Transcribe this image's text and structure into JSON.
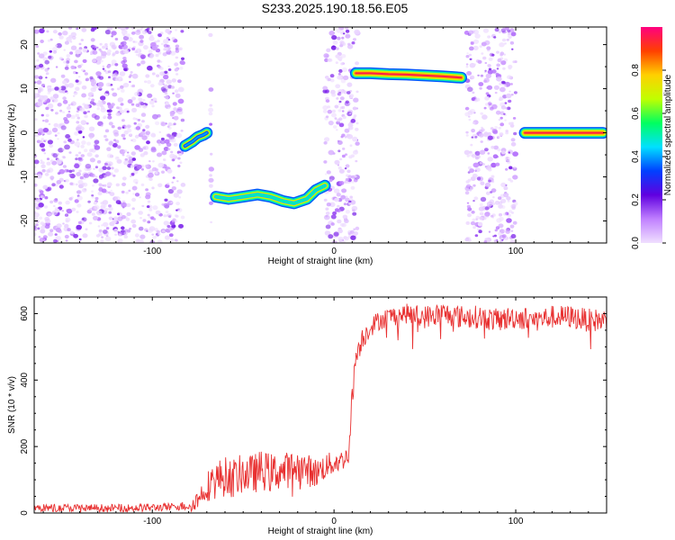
{
  "title": "S233.2025.190.18.56.E05",
  "chart_data": [
    {
      "type": "heatmap",
      "xlabel": "Height of straight line (km)",
      "ylabel": "Frequency (Hz)",
      "xlim": [
        -165,
        150
      ],
      "ylim": [
        -25,
        24
      ],
      "xticks": [
        -100,
        0,
        100
      ],
      "yticks": [
        -20,
        -10,
        0,
        10,
        20
      ],
      "colorbar": {
        "label": "Normalized spectral amplitude",
        "range": [
          0,
          1
        ],
        "ticks": [
          0.0,
          0.2,
          0.4,
          0.6,
          0.8
        ],
        "tick_labels": [
          "0.0",
          "0.2",
          "0.4",
          "0.6",
          "0.8"
        ],
        "colors": [
          "#f0e0ff",
          "#c080ff",
          "#6000e0",
          "#0040ff",
          "#00e0ff",
          "#00ff60",
          "#c0ff00",
          "#ffd000",
          "#ff4000",
          "#ff0080"
        ]
      },
      "noise_regions": [
        [
          -165,
          -83
        ],
        [
          -68,
          -67
        ],
        [
          -5,
          13
        ],
        [
          73,
          100
        ]
      ],
      "tracks": [
        {
          "name": "",
          "x": [
            -82,
            -78,
            -75,
            -72,
            -70
          ],
          "y": [
            -3,
            -2,
            -1,
            -0.5,
            0
          ],
          "amplitude": 0.4
        },
        {
          "name": "",
          "x": [
            -65,
            -58,
            -50,
            -42,
            -35,
            -28,
            -22,
            -15,
            -10,
            -5
          ],
          "y": [
            -14.5,
            -15,
            -14.5,
            -14,
            -14.5,
            -15.5,
            -16,
            -15,
            -13,
            -12
          ],
          "amplitude": 0.5
        },
        {
          "name": "",
          "x": [
            12,
            20,
            30,
            40,
            50,
            60,
            70
          ],
          "y": [
            13.5,
            13.5,
            13.3,
            13.2,
            13,
            12.8,
            12.5
          ],
          "amplitude": 0.95
        },
        {
          "name": "",
          "x": [
            105,
            115,
            125,
            135,
            148
          ],
          "y": [
            0,
            0,
            0,
            0,
            0
          ],
          "amplitude": 0.95
        }
      ]
    },
    {
      "type": "line",
      "xlabel": "Height of straight line (km)",
      "ylabel": "SNR (10 * v/v)",
      "xlim": [
        -165,
        150
      ],
      "ylim": [
        0,
        650
      ],
      "xticks": [
        -100,
        0,
        100
      ],
      "yticks": [
        0,
        200,
        400,
        600
      ],
      "line_color": "#e83030",
      "series": [
        {
          "name": "",
          "x": [
            -165,
            -150,
            -130,
            -110,
            -90,
            -80,
            -75,
            -70,
            -65,
            -60,
            -55,
            -50,
            -45,
            -40,
            -35,
            -30,
            -25,
            -20,
            -15,
            -10,
            -5,
            0,
            5,
            8,
            10,
            12,
            15,
            20,
            25,
            30,
            40,
            50,
            60,
            70,
            80,
            90,
            100,
            110,
            120,
            130,
            140,
            150
          ],
          "y": [
            15,
            15,
            15,
            15,
            18,
            22,
            40,
            80,
            100,
            110,
            105,
            120,
            115,
            130,
            120,
            125,
            130,
            140,
            130,
            120,
            140,
            150,
            160,
            180,
            350,
            470,
            520,
            560,
            580,
            590,
            600,
            590,
            600,
            590,
            590,
            580,
            590,
            580,
            590,
            590,
            580,
            580
          ],
          "noise": [
            12,
            12,
            12,
            12,
            12,
            15,
            30,
            45,
            60,
            60,
            60,
            60,
            60,
            60,
            60,
            55,
            55,
            50,
            50,
            45,
            40,
            35,
            30,
            25,
            40,
            40,
            35,
            30,
            30,
            30,
            30,
            35,
            35,
            35,
            35,
            35,
            35,
            35,
            35,
            35,
            35,
            35
          ]
        }
      ]
    }
  ]
}
